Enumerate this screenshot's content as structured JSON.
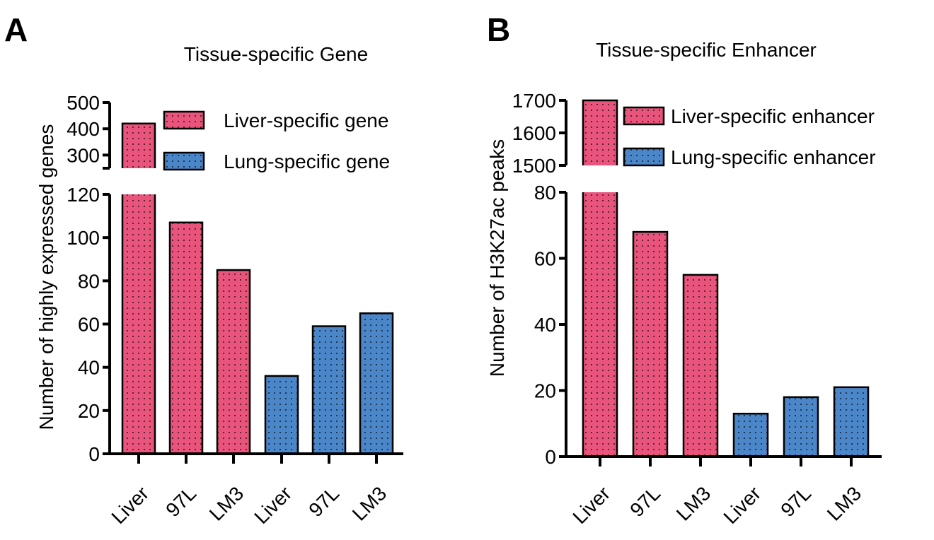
{
  "colors": {
    "liver": "#e8547b",
    "lung": "#4a86c8",
    "axis": "#000000",
    "dots": "#000000"
  },
  "chart_data": [
    {
      "panel": "A",
      "type": "bar",
      "title": "Tissue-specific Gene",
      "ylabel": "Number of highly expressed genes",
      "xlabel": "",
      "categories": [
        "Liver",
        "97L",
        "LM3",
        "Liver",
        "97L",
        "LM3"
      ],
      "values": [
        420,
        107,
        85,
        36,
        59,
        65
      ],
      "groups": [
        "liver",
        "liver",
        "liver",
        "lung",
        "lung",
        "lung"
      ],
      "broken_axis": {
        "lower": {
          "ylim": [
            0,
            120
          ],
          "ticks": [
            0,
            20,
            40,
            60,
            80,
            100,
            120
          ]
        },
        "upper": {
          "ylim": [
            250,
            500
          ],
          "ticks": [
            300,
            400,
            500
          ]
        }
      },
      "legend": [
        {
          "label": "Liver-specific gene",
          "group": "liver"
        },
        {
          "label": "Lung-specific gene",
          "group": "lung"
        }
      ],
      "legend_position": "top-right"
    },
    {
      "panel": "B",
      "type": "bar",
      "title": "Tissue-specific Enhancer",
      "ylabel": "Number of H3K27ac peaks",
      "xlabel": "",
      "categories": [
        "Liver",
        "97L",
        "LM3",
        "Liver",
        "97L",
        "LM3"
      ],
      "values": [
        1700,
        68,
        55,
        13,
        18,
        21
      ],
      "groups": [
        "liver",
        "liver",
        "liver",
        "lung",
        "lung",
        "lung"
      ],
      "broken_axis": {
        "lower": {
          "ylim": [
            0,
            80
          ],
          "ticks": [
            0,
            20,
            40,
            60,
            80
          ]
        },
        "upper": {
          "ylim": [
            1500,
            1700
          ],
          "ticks": [
            1500,
            1600,
            1700
          ]
        }
      },
      "legend": [
        {
          "label": "Liver-specific enhancer",
          "group": "liver"
        },
        {
          "label": "Lung-specific enhancer",
          "group": "lung"
        }
      ],
      "legend_position": "top-right"
    }
  ]
}
